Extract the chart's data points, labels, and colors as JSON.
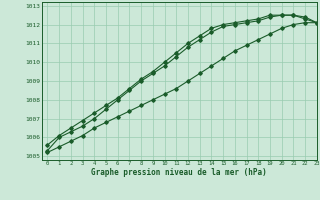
{
  "xlabel": "Graphe pression niveau de la mer (hPa)",
  "bg_color": "#cce8d8",
  "grid_color": "#99ccb0",
  "line_color": "#1a5c2a",
  "xlim": [
    -0.5,
    23
  ],
  "ylim": [
    1004.8,
    1013.2
  ],
  "yticks": [
    1005,
    1006,
    1007,
    1008,
    1009,
    1010,
    1011,
    1012,
    1013
  ],
  "xticks": [
    0,
    1,
    2,
    3,
    4,
    5,
    6,
    7,
    8,
    9,
    10,
    11,
    12,
    13,
    14,
    15,
    16,
    17,
    18,
    19,
    20,
    21,
    22,
    23
  ],
  "series": [
    [
      1005.3,
      1006.0,
      1006.3,
      1006.6,
      1007.0,
      1007.5,
      1008.0,
      1008.5,
      1009.0,
      1009.4,
      1009.8,
      1010.3,
      1010.8,
      1011.2,
      1011.6,
      1011.9,
      1012.0,
      1012.1,
      1012.2,
      1012.4,
      1012.5,
      1012.5,
      1012.4,
      1012.1
    ],
    [
      1005.6,
      1006.1,
      1006.5,
      1006.9,
      1007.3,
      1007.7,
      1008.1,
      1008.6,
      1009.1,
      1009.5,
      1010.0,
      1010.5,
      1011.0,
      1011.4,
      1011.8,
      1012.0,
      1012.1,
      1012.2,
      1012.3,
      1012.5,
      1012.5,
      1012.5,
      1012.3,
      1012.1
    ],
    [
      1005.2,
      1005.5,
      1005.8,
      1006.1,
      1006.5,
      1006.8,
      1007.1,
      1007.4,
      1007.7,
      1008.0,
      1008.3,
      1008.6,
      1009.0,
      1009.4,
      1009.8,
      1010.2,
      1010.6,
      1010.9,
      1011.2,
      1011.5,
      1011.8,
      1012.0,
      1012.1,
      1012.1
    ]
  ]
}
